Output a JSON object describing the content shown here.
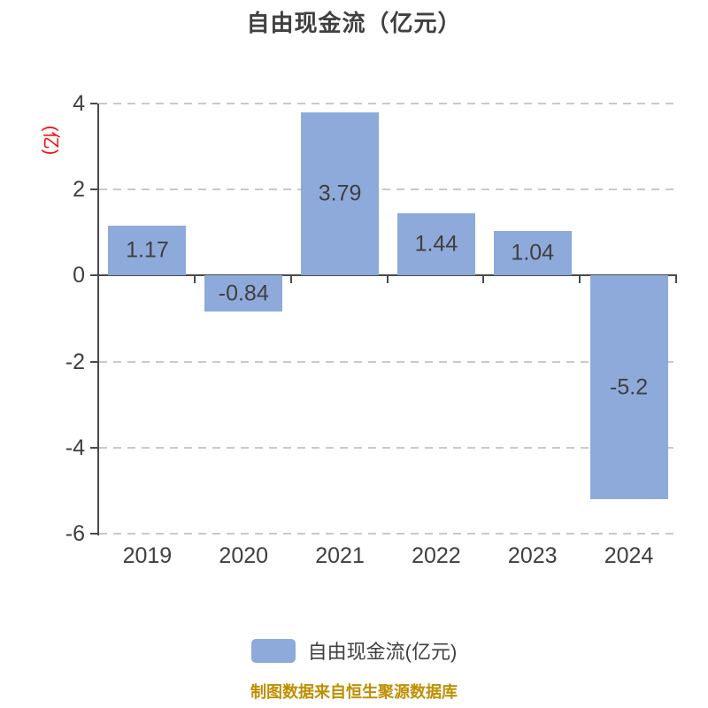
{
  "title": "自由现金流（亿元）",
  "y_axis": {
    "unit_label": "(亿)",
    "unit_label_color": "#FF0000",
    "ticks": [
      4,
      2,
      0,
      -2,
      -4,
      -6
    ]
  },
  "x_axis": {
    "categories": [
      "2019",
      "2020",
      "2021",
      "2022",
      "2023",
      "2024"
    ]
  },
  "legend": {
    "label": "自由现金流(亿元)",
    "swatch_color": "#8EAADB"
  },
  "footer": {
    "text": "制图数据来自恒生聚源数据库",
    "color": "#BF8F00"
  },
  "colors": {
    "bar": "#8EAADB",
    "axis_line": "#4A4A4A",
    "gridline": "#C9C9C9",
    "tick_text": "#3F3F3F",
    "title_text": "#404040",
    "background": "#FFFFFF"
  },
  "chart_data": {
    "type": "bar",
    "title": "自由现金流（亿元）",
    "xlabel": "",
    "ylabel": "(亿)",
    "categories": [
      "2019",
      "2020",
      "2021",
      "2022",
      "2023",
      "2024"
    ],
    "values": [
      1.17,
      -0.84,
      3.79,
      1.44,
      1.04,
      -5.2
    ],
    "value_labels": [
      "1.17",
      "-0.84",
      "3.79",
      "1.44",
      "1.04",
      "-5.2"
    ],
    "series": [
      {
        "name": "自由现金流(亿元)",
        "values": [
          1.17,
          -0.84,
          3.79,
          1.44,
          1.04,
          -5.2
        ]
      }
    ],
    "ylim": [
      -6,
      4
    ],
    "y_ticks": [
      4,
      2,
      0,
      -2,
      -4,
      -6
    ],
    "grid": "horizontal-dashed",
    "legend_position": "bottom",
    "bar_color": "#8EAADB"
  }
}
